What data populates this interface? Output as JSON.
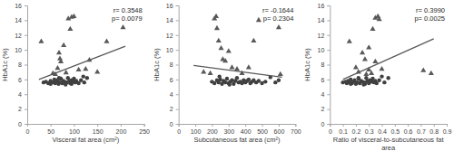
{
  "chart_data": [
    {
      "type": "scatter",
      "xlabel": "Visceral fat area (cm²)",
      "ylabel": "HbA1c (%)",
      "xlim": [
        0,
        250
      ],
      "xticks": [
        0,
        50,
        100,
        150,
        200,
        250
      ],
      "ylim": [
        0,
        16
      ],
      "yticks": [
        0,
        2,
        4,
        6,
        8,
        10,
        12,
        14,
        16
      ],
      "annotations": [
        "r= 0.3548",
        "p= 0.0079"
      ],
      "series": [
        {
          "color": "#404040",
          "marker": "circle",
          "x": [
            35,
            40,
            45,
            50,
            55,
            58,
            60,
            62,
            65,
            67,
            70,
            72,
            75,
            77,
            80,
            82,
            85,
            87,
            90,
            92,
            95,
            98,
            100,
            103,
            105,
            110,
            115,
            120,
            122,
            128,
            95,
            68,
            50
          ],
          "values": [
            5.6,
            5.7,
            5.5,
            5.8,
            5.6,
            6.0,
            5.5,
            5.7,
            5.9,
            5.4,
            5.6,
            6.1,
            5.5,
            5.8,
            5.7,
            5.3,
            5.6,
            6.2,
            5.8,
            5.5,
            5.9,
            5.7,
            6.1,
            5.6,
            5.8,
            5.5,
            5.9,
            6.4,
            5.6,
            6.2,
            5.4,
            6.2,
            5.4
          ]
        },
        {
          "color": "#595959",
          "marker": "triangle",
          "x": [
            30,
            55,
            60,
            65,
            68,
            70,
            72,
            78,
            83,
            88,
            92,
            95,
            100,
            110,
            125,
            133,
            150,
            170,
            205
          ],
          "values": [
            11.1,
            6.8,
            6.7,
            7.5,
            9.6,
            8.8,
            8.4,
            10.6,
            6.9,
            14.2,
            12.8,
            14.4,
            14.5,
            7.3,
            7.4,
            8.6,
            7.0,
            11.1,
            13.0
          ]
        },
        {
          "type": "line",
          "color": "#595959",
          "line_style": "solid",
          "x": [
            25,
            210
          ],
          "values": [
            6.0,
            10.5
          ]
        }
      ]
    },
    {
      "type": "scatter",
      "xlabel": "Subcutaneous fat area (cm²)",
      "ylabel": "HbA1c (%)",
      "xlim": [
        0,
        700
      ],
      "xticks": [
        0,
        100,
        200,
        300,
        400,
        500,
        600,
        700
      ],
      "ylim": [
        0,
        16
      ],
      "yticks": [
        0,
        2,
        4,
        6,
        8,
        10,
        12,
        14,
        16
      ],
      "annotations": [
        "r= -0.1644",
        "p= 0.2304"
      ],
      "series": [
        {
          "color": "#404040",
          "marker": "circle",
          "x": [
            200,
            215,
            230,
            240,
            250,
            260,
            270,
            280,
            290,
            300,
            310,
            320,
            330,
            340,
            350,
            360,
            370,
            380,
            390,
            400,
            410,
            420,
            430,
            440,
            450,
            465,
            480,
            500,
            520,
            550,
            580,
            600,
            245,
            305
          ],
          "values": [
            5.7,
            5.5,
            5.9,
            5.6,
            6.0,
            5.4,
            5.8,
            5.6,
            6.1,
            5.5,
            5.7,
            5.9,
            5.4,
            5.8,
            6.2,
            5.6,
            5.7,
            5.5,
            5.9,
            5.6,
            5.8,
            6.0,
            5.5,
            5.7,
            5.9,
            5.6,
            5.8,
            5.5,
            5.7,
            6.3,
            5.6,
            5.9,
            6.4,
            5.3
          ]
        },
        {
          "color": "#595959",
          "marker": "triangle",
          "x": [
            150,
            190,
            215,
            225,
            230,
            240,
            255,
            265,
            280,
            300,
            320,
            350,
            380,
            420,
            450,
            480,
            600,
            610
          ],
          "values": [
            7.0,
            6.8,
            14.2,
            14.5,
            12.9,
            11.2,
            10.2,
            8.7,
            8.5,
            9.8,
            7.6,
            7.4,
            6.8,
            7.6,
            11.2,
            14.0,
            13.0,
            6.7
          ]
        },
        {
          "type": "line",
          "color": "#595959",
          "line_style": "solid",
          "x": [
            90,
            620
          ],
          "values": [
            7.9,
            6.3
          ]
        }
      ]
    },
    {
      "type": "scatter",
      "xlabel": "Ratio of visceral-to-subcutaneous fat area",
      "ylabel": "HbA1c (%)",
      "xlim": [
        0,
        0.9
      ],
      "xticks": [
        0,
        0.1,
        0.2,
        0.3,
        0.4,
        0.5,
        0.6,
        0.7,
        0.8,
        0.9
      ],
      "ylim": [
        0,
        16
      ],
      "yticks": [
        0,
        2,
        4,
        6,
        8,
        10,
        12,
        14,
        16
      ],
      "annotations": [
        "r= 0.3990",
        "p= 0.0025"
      ],
      "series": [
        {
          "color": "#404040",
          "marker": "circle",
          "x": [
            0.1,
            0.12,
            0.13,
            0.14,
            0.15,
            0.16,
            0.17,
            0.18,
            0.19,
            0.2,
            0.21,
            0.22,
            0.23,
            0.24,
            0.25,
            0.26,
            0.27,
            0.28,
            0.29,
            0.3,
            0.31,
            0.32,
            0.33,
            0.34,
            0.35,
            0.36,
            0.38,
            0.4,
            0.42,
            0.45,
            0.16,
            0.22,
            0.27
          ],
          "values": [
            5.6,
            5.7,
            5.5,
            5.8,
            5.6,
            6.0,
            5.5,
            5.7,
            5.9,
            5.4,
            5.6,
            6.1,
            5.5,
            5.8,
            5.7,
            5.3,
            5.6,
            6.2,
            5.8,
            5.5,
            5.9,
            5.7,
            6.1,
            5.6,
            5.8,
            5.5,
            5.9,
            6.4,
            5.6,
            6.2,
            5.4,
            6.2,
            5.4
          ]
        },
        {
          "color": "#595959",
          "marker": "triangle",
          "x": [
            0.15,
            0.2,
            0.22,
            0.25,
            0.27,
            0.28,
            0.3,
            0.3,
            0.32,
            0.33,
            0.35,
            0.35,
            0.37,
            0.38,
            0.4,
            0.72,
            0.78
          ],
          "values": [
            11.1,
            7.6,
            7.0,
            9.6,
            8.7,
            6.7,
            10.3,
            7.3,
            6.8,
            12.8,
            14.3,
            8.4,
            14.5,
            14.1,
            7.4,
            7.2,
            6.8
          ]
        },
        {
          "type": "line",
          "color": "#595959",
          "line_style": "solid",
          "x": [
            0.1,
            0.8
          ],
          "values": [
            6.0,
            11.5
          ]
        }
      ]
    }
  ]
}
